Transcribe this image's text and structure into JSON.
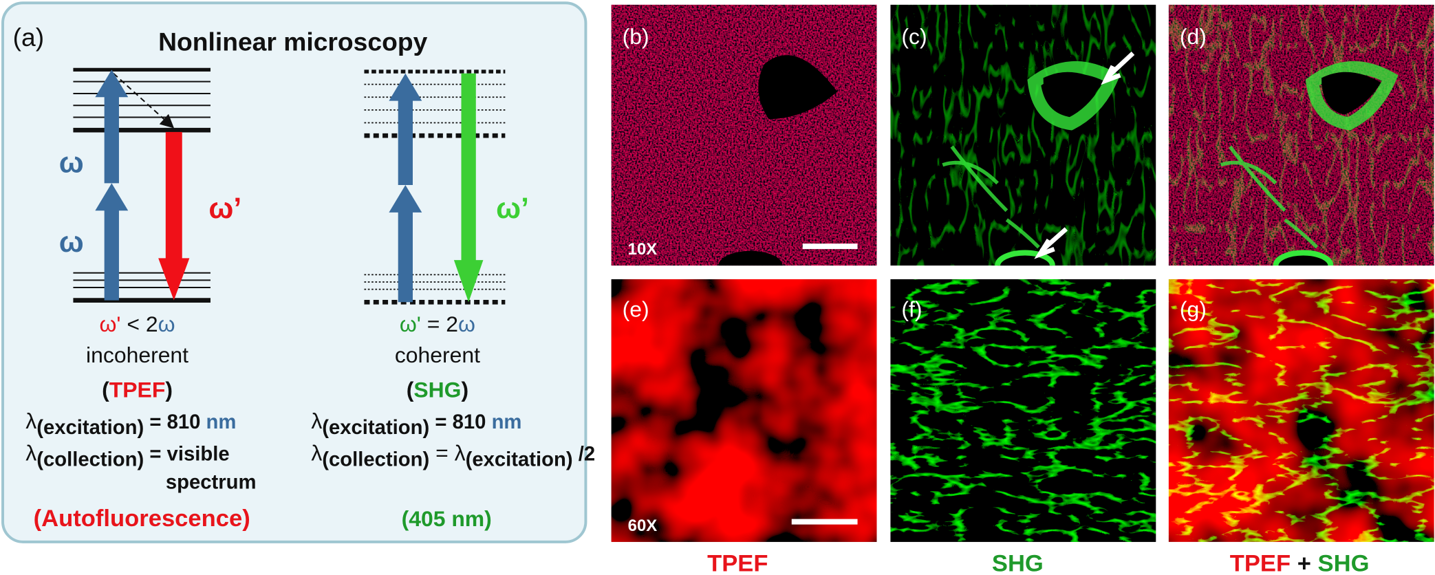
{
  "panel_a": {
    "label": "(a)",
    "title": "Nonlinear microscopy",
    "tpef": {
      "omega_1": "ω",
      "omega_2": "ω",
      "omega_emit": "ω’",
      "relation": [
        "ω'",
        " < 2",
        "ω"
      ],
      "coherence": "incoherent",
      "name": [
        "(",
        "TPEF",
        ")"
      ],
      "excitation": [
        "λ",
        "(excitation)",
        " = 810 ",
        "nm"
      ],
      "collection": [
        "λ",
        "(collection)",
        " = visible"
      ],
      "collection_2": "spectrum",
      "note": "(Autofluorescence)"
    },
    "shg": {
      "omega_emit": "ω’",
      "relation": [
        "ω'",
        " = 2",
        "ω"
      ],
      "coherence": "coherent",
      "name": [
        "(",
        "SHG",
        ")"
      ],
      "excitation": [
        "λ",
        "(excitation)",
        " = 810 ",
        "nm"
      ],
      "collection": [
        "λ",
        "(collection)",
        " = λ",
        "(excitation)",
        " /2"
      ],
      "note": "(405 nm)"
    }
  },
  "panels": [
    {
      "label": "(b)",
      "magnification": "10X"
    },
    {
      "label": "(c)"
    },
    {
      "label": "(d)"
    },
    {
      "label": "(e)",
      "magnification": "60X"
    },
    {
      "label": "(f)"
    },
    {
      "label": "(g)"
    }
  ],
  "captions": {
    "tpef": "TPEF",
    "shg": "SHG",
    "merged": [
      "TPEF",
      " + ",
      "SHG"
    ]
  }
}
